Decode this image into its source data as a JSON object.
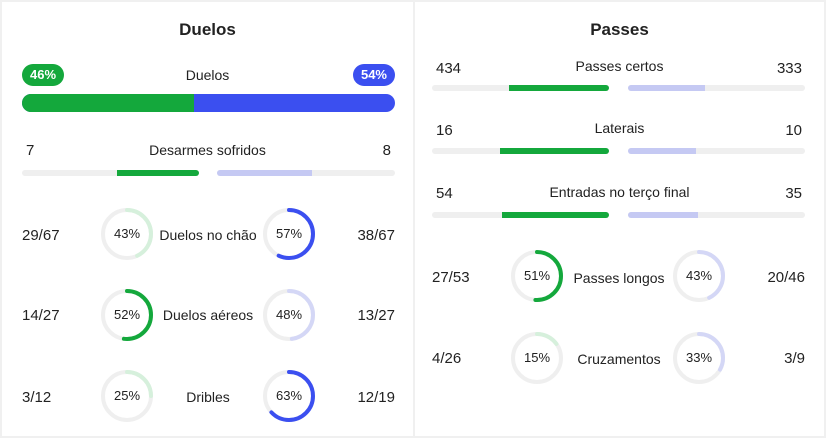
{
  "duelos": {
    "title": "Duelos",
    "main": {
      "label": "Duelos",
      "home_pct": "46%",
      "away_pct": "54%",
      "home_fraction": 0.46
    },
    "desarmes": {
      "label": "Desarmes sofridos",
      "home": "7",
      "away": "8",
      "home_fraction": 0.466,
      "away_fraction": 0.533
    },
    "rings": [
      {
        "label": "Duelos no chão",
        "home": "29/67",
        "away": "38/67",
        "home_pct": "43%",
        "away_pct": "57%",
        "home_value": 0.43,
        "away_value": 0.57
      },
      {
        "label": "Duelos aéreos",
        "home": "14/27",
        "away": "13/27",
        "home_pct": "52%",
        "away_pct": "48%",
        "home_value": 0.52,
        "away_value": 0.48
      },
      {
        "label": "Dribles",
        "home": "3/12",
        "away": "12/19",
        "home_pct": "25%",
        "away_pct": "63%",
        "home_value": 0.25,
        "away_value": 0.63
      }
    ]
  },
  "passes": {
    "title": "Passes",
    "bars": [
      {
        "label": "Passes certos",
        "home": "434",
        "away": "333",
        "home_fraction": 0.566,
        "away_fraction": 0.434
      },
      {
        "label": "Laterais",
        "home": "16",
        "away": "10",
        "home_fraction": 0.615,
        "away_fraction": 0.385
      },
      {
        "label": "Entradas no terço final",
        "home": "54",
        "away": "35",
        "home_fraction": 0.607,
        "away_fraction": 0.393
      }
    ],
    "rings": [
      {
        "label": "Passes longos",
        "home": "27/53",
        "away": "20/46",
        "home_pct": "51%",
        "away_pct": "43%",
        "home_value": 0.51,
        "away_value": 0.43
      },
      {
        "label": "Cruzamentos",
        "home": "4/26",
        "away": "3/9",
        "home_pct": "15%",
        "away_pct": "33%",
        "home_value": 0.15,
        "away_value": 0.33
      }
    ]
  },
  "colors": {
    "home": "#14a83c",
    "away": "#3b4ff0",
    "home_light": "#d6f0dc",
    "away_light": "#d4d7f6",
    "track": "#efefef"
  }
}
